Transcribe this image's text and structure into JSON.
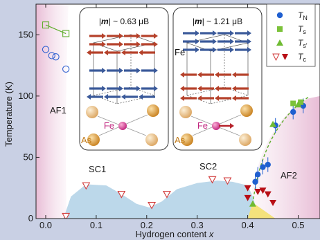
{
  "chart_data": {
    "type": "scatter",
    "xlabel": "Hydrogen content x",
    "ylabel": "Temperature (K)",
    "xlim": [
      -0.01,
      0.535
    ],
    "ylim": [
      0,
      175
    ],
    "x_ticks": [
      "0.0",
      "0.1",
      "0.2",
      "0.3",
      "0.4",
      "0.5"
    ],
    "y_ticks": [
      "0",
      "50",
      "100",
      "150"
    ],
    "series": [
      {
        "name": "T_N",
        "label_main": "T",
        "label_sub": "N",
        "marker": "filled-circle",
        "color": "#1f5fd0",
        "points": [
          [
            0.415,
            30
          ],
          [
            0.42,
            36
          ],
          [
            0.43,
            42
          ],
          [
            0.44,
            44
          ],
          [
            0.455,
            76
          ],
          [
            0.49,
            87
          ],
          [
            0.51,
            92
          ]
        ]
      },
      {
        "name": "T_N (AF1)",
        "label_main": "",
        "label_sub": "",
        "marker": "open-circle",
        "color": "#2e5fd0",
        "points": [
          [
            0.0,
            138
          ],
          [
            0.012,
            133
          ],
          [
            0.02,
            132
          ],
          [
            0.04,
            122
          ]
        ]
      },
      {
        "name": "T_s",
        "label_main": "T",
        "label_sub": "s",
        "marker": "filled-square",
        "color": "#7cc23a",
        "points": [
          [
            0.49,
            94
          ],
          [
            0.505,
            95
          ]
        ]
      },
      {
        "name": "T_s (AF1)",
        "label_main": "",
        "label_sub": "",
        "marker": "open-square",
        "color": "#5fae2c",
        "points": [
          [
            0.0,
            158
          ],
          [
            0.04,
            151
          ]
        ]
      },
      {
        "name": "T_s'",
        "label_main": "T",
        "label_sub": "s'",
        "marker": "filled-triangle",
        "color": "#6fbb32",
        "points": [
          [
            0.41,
            12
          ],
          [
            0.45,
            77
          ],
          [
            0.5,
            93
          ]
        ]
      },
      {
        "name": "T_c",
        "label_main": "T",
        "label_sub": "c",
        "marker": "open-triangle-down",
        "color": "#d23c3c",
        "points": [
          [
            0.04,
            2
          ],
          [
            0.08,
            27
          ],
          [
            0.15,
            20
          ],
          [
            0.21,
            11
          ],
          [
            0.24,
            20
          ],
          [
            0.33,
            32
          ],
          [
            0.36,
            31
          ]
        ]
      },
      {
        "name": "T_c (SC2)",
        "label_main": "",
        "label_sub": "",
        "marker": "filled-triangle-down",
        "color": "#b80f16",
        "points": [
          [
            0.4,
            25
          ],
          [
            0.4,
            17
          ],
          [
            0.42,
            22
          ],
          [
            0.43,
            23
          ],
          [
            0.44,
            20
          ],
          [
            0.45,
            13
          ]
        ]
      }
    ],
    "regions": [
      {
        "label": "AF1",
        "color": "#e7b9d4"
      },
      {
        "label": "AF2",
        "color": "#e7b9d4"
      },
      {
        "label": "SC1",
        "color": "#bcd8ea"
      },
      {
        "label": "SC2",
        "color": "#bcd8ea"
      }
    ],
    "insets": [
      {
        "title_m": "m",
        "title_value": "~ 0.63 μB",
        "atom_fe": "Fe",
        "atom_as": "As"
      },
      {
        "title_m": "m",
        "title_value": "~ 1.21 μB",
        "atom_fe": "Fe",
        "atom_fe2": "Fe",
        "atom_as": "As"
      }
    ],
    "legend_position": "top-right"
  }
}
